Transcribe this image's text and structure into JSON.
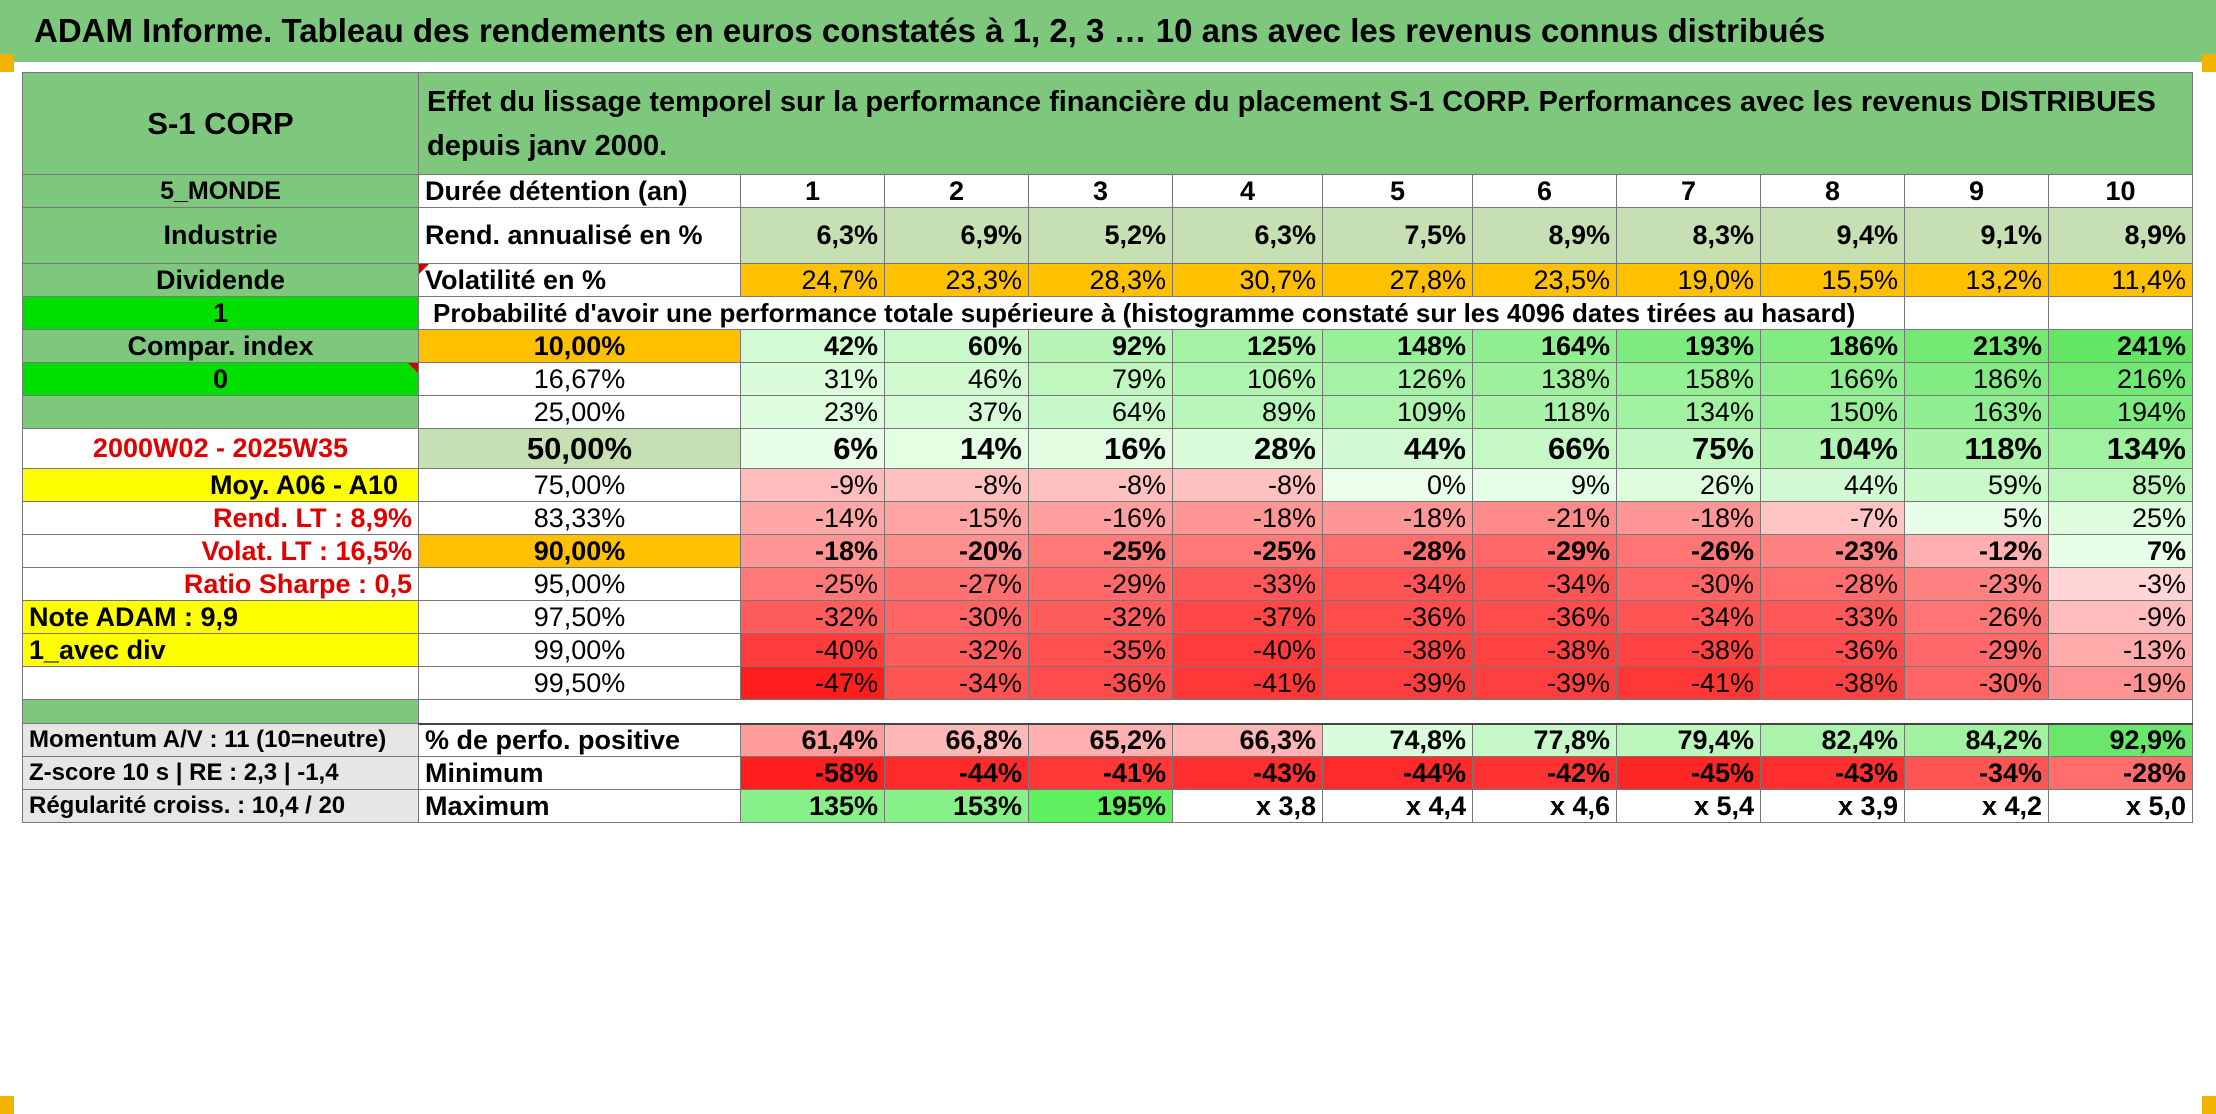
{
  "title": "ADAM Informe. Tableau des rendements en euros constatés à 1, 2, 3 … 10 ans avec les revenus connus distribués",
  "fund": {
    "name": "S-1 CORP",
    "region": "5_MONDE",
    "sector": "Industrie",
    "type": "Dividende",
    "flag1": "1",
    "compar_label": "Compar. index",
    "flag0": "0",
    "period": "2000W02 - 2025W35",
    "moy": "Moy. A06 - A10",
    "rend_lt": "Rend. LT :   8,9%",
    "volat_lt": "Volat. LT :   16,5%",
    "sharpe": "Ratio Sharpe :   0,5",
    "note": "Note ADAM : 9,9",
    "div": "1_avec div",
    "momentum": "Momentum A/V : 11 (10=neutre)",
    "zscore": "Z-score 10 s | RE : 2,3 | -1,4",
    "regularite": "Régularité croiss. : 10,4 / 20"
  },
  "header_text": "Effet du lissage temporel sur la performance financière du placement S-1 CORP. Performances avec les revenus DISTRIBUES depuis janv 2000.",
  "row_labels": {
    "duree": "Durée détention (an)",
    "rend": "Rend. annualisé en %",
    "volat": "Volatilité en %",
    "proba": "Probabilité d'avoir une performance totale supérieure à (histogramme constaté sur les 4096 dates tirées au hasard)",
    "positive": "% de perfo. positive",
    "minimum": "Minimum",
    "maximum": "Maximum"
  },
  "years": [
    "1",
    "2",
    "3",
    "4",
    "5",
    "6",
    "7",
    "8",
    "9",
    "10"
  ],
  "rend": [
    "6,3%",
    "6,9%",
    "5,2%",
    "6,3%",
    "7,5%",
    "8,9%",
    "8,3%",
    "9,4%",
    "9,1%",
    "8,9%"
  ],
  "volat": [
    "24,7%",
    "23,3%",
    "28,3%",
    "30,7%",
    "27,8%",
    "23,5%",
    "19,0%",
    "15,5%",
    "13,2%",
    "11,4%"
  ],
  "prob_rows": [
    {
      "pct": "10,00%",
      "values": [
        "42%",
        "60%",
        "92%",
        "125%",
        "148%",
        "164%",
        "193%",
        "186%",
        "213%",
        "241%"
      ],
      "bold": true
    },
    {
      "pct": "16,67%",
      "values": [
        "31%",
        "46%",
        "79%",
        "106%",
        "126%",
        "138%",
        "158%",
        "166%",
        "186%",
        "216%"
      ],
      "bold": false
    },
    {
      "pct": "25,00%",
      "values": [
        "23%",
        "37%",
        "64%",
        "89%",
        "109%",
        "118%",
        "134%",
        "150%",
        "163%",
        "194%"
      ],
      "bold": false
    },
    {
      "pct": "50,00%",
      "values": [
        "6%",
        "14%",
        "16%",
        "28%",
        "44%",
        "66%",
        "75%",
        "104%",
        "118%",
        "134%"
      ],
      "bold": true
    },
    {
      "pct": "75,00%",
      "values": [
        "-9%",
        "-8%",
        "-8%",
        "-8%",
        "0%",
        "9%",
        "26%",
        "44%",
        "59%",
        "85%"
      ],
      "bold": false
    },
    {
      "pct": "83,33%",
      "values": [
        "-14%",
        "-15%",
        "-16%",
        "-18%",
        "-18%",
        "-21%",
        "-18%",
        "-7%",
        "5%",
        "25%"
      ],
      "bold": false
    },
    {
      "pct": "90,00%",
      "values": [
        "-18%",
        "-20%",
        "-25%",
        "-25%",
        "-28%",
        "-29%",
        "-26%",
        "-23%",
        "-12%",
        "7%"
      ],
      "bold": true
    },
    {
      "pct": "95,00%",
      "values": [
        "-25%",
        "-27%",
        "-29%",
        "-33%",
        "-34%",
        "-34%",
        "-30%",
        "-28%",
        "-23%",
        "-3%"
      ],
      "bold": false
    },
    {
      "pct": "97,50%",
      "values": [
        "-32%",
        "-30%",
        "-32%",
        "-37%",
        "-36%",
        "-36%",
        "-34%",
        "-33%",
        "-26%",
        "-9%"
      ],
      "bold": false
    },
    {
      "pct": "99,00%",
      "values": [
        "-40%",
        "-32%",
        "-35%",
        "-40%",
        "-38%",
        "-38%",
        "-38%",
        "-36%",
        "-29%",
        "-13%"
      ],
      "bold": false
    },
    {
      "pct": "99,50%",
      "values": [
        "-47%",
        "-34%",
        "-36%",
        "-41%",
        "-39%",
        "-39%",
        "-41%",
        "-38%",
        "-30%",
        "-19%"
      ],
      "bold": false
    }
  ],
  "positive": [
    "61,4%",
    "66,8%",
    "65,2%",
    "66,3%",
    "74,8%",
    "77,8%",
    "79,4%",
    "82,4%",
    "84,2%",
    "92,9%"
  ],
  "minimum": [
    "-58%",
    "-44%",
    "-41%",
    "-43%",
    "-44%",
    "-42%",
    "-45%",
    "-43%",
    "-34%",
    "-28%"
  ],
  "maximum": [
    "135%",
    "153%",
    "195%",
    "x 3,8",
    "x 4,4",
    "x 4,6",
    "x 5,4",
    "x 3,9",
    "x 4,2",
    "x 5,0"
  ],
  "colors": {
    "header_green": "#7ec87e",
    "bright_green": "#00e000",
    "orange": "#ffc000",
    "yellow": "#ffff00",
    "label_red": "#e00000"
  }
}
